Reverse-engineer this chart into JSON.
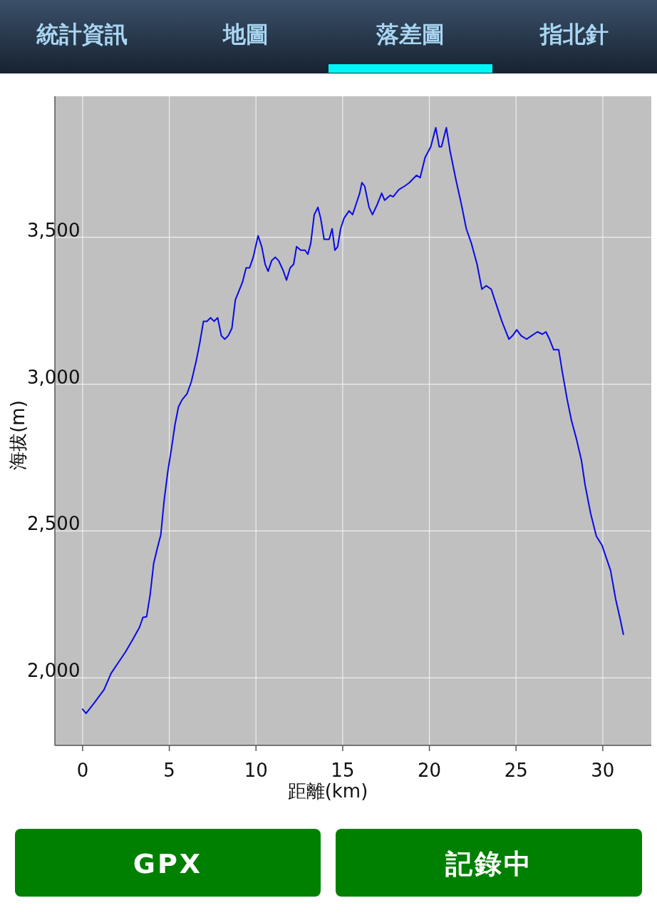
{
  "chart_data": {
    "type": "line",
    "xlabel": "距離(km)",
    "ylabel": "海拔(m)",
    "annotations": [
      "統計資訊",
      "地圖",
      "落差圖",
      "指北針",
      "GPX",
      "記錄中"
    ],
    "xlim": [
      -1.6,
      32.8
    ],
    "ylim": [
      1770,
      3980
    ],
    "xticks": [
      0,
      5,
      10,
      15,
      20,
      25,
      30
    ],
    "yticks": [
      {
        "value": 2000,
        "label": "2,000"
      },
      {
        "value": 2500,
        "label": "2,500"
      },
      {
        "value": 3000,
        "label": "3,000"
      },
      {
        "value": 3500,
        "label": "3,500"
      }
    ],
    "grid": true,
    "x": [
      0,
      0.2,
      0.61,
      1.23,
      1.64,
      2.05,
      2.46,
      2.87,
      3.28,
      3.48,
      3.69,
      3.89,
      4.1,
      4.3,
      4.51,
      4.71,
      4.92,
      5.12,
      5.33,
      5.53,
      5.74,
      6.02,
      6.27,
      6.56,
      6.76,
      6.97,
      7.17,
      7.38,
      7.58,
      7.79,
      8.0,
      8.2,
      8.4,
      8.61,
      8.81,
      9.22,
      9.43,
      9.63,
      9.84,
      10.12,
      10.33,
      10.53,
      10.7,
      10.9,
      11.11,
      11.31,
      11.56,
      11.76,
      11.97,
      12.17,
      12.34,
      12.58,
      12.83,
      12.99,
      13.16,
      13.36,
      13.57,
      13.73,
      13.93,
      14.22,
      14.39,
      14.55,
      14.71,
      14.88,
      15.08,
      15.37,
      15.57,
      15.78,
      15.98,
      16.11,
      16.27,
      16.52,
      16.72,
      17.01,
      17.25,
      17.42,
      17.75,
      17.91,
      18.24,
      18.57,
      18.85,
      19.26,
      19.47,
      19.75,
      20.08,
      20.37,
      20.57,
      20.7,
      20.98,
      21.19,
      21.52,
      21.84,
      22.13,
      22.42,
      22.75,
      23.03,
      23.28,
      23.57,
      23.77,
      24.18,
      24.59,
      24.8,
      25.04,
      25.29,
      25.61,
      25.9,
      26.23,
      26.52,
      26.72,
      26.93,
      27.17,
      27.46,
      27.66,
      27.95,
      28.2,
      28.48,
      28.77,
      28.98,
      29.3,
      29.63,
      29.96,
      30.2,
      30.45,
      30.74,
      31.02,
      31.19
    ],
    "series": [
      {
        "color": "#0a0ae6",
        "values": [
          1893,
          1879,
          1910,
          1959,
          2015,
          2051,
          2087,
          2128,
          2172,
          2206,
          2208,
          2281,
          2390,
          2439,
          2487,
          2608,
          2705,
          2778,
          2863,
          2923,
          2947,
          2967,
          3008,
          3081,
          3141,
          3214,
          3214,
          3226,
          3214,
          3226,
          3165,
          3153,
          3165,
          3190,
          3287,
          3347,
          3396,
          3396,
          3432,
          3505,
          3468,
          3408,
          3384,
          3420,
          3432,
          3420,
          3388,
          3354,
          3396,
          3408,
          3468,
          3456,
          3456,
          3442,
          3480,
          3577,
          3602,
          3565,
          3493,
          3493,
          3529,
          3456,
          3468,
          3529,
          3565,
          3590,
          3577,
          3614,
          3650,
          3686,
          3674,
          3602,
          3577,
          3614,
          3650,
          3626,
          3643,
          3638,
          3662,
          3674,
          3686,
          3711,
          3703,
          3771,
          3808,
          3873,
          3808,
          3808,
          3873,
          3795,
          3699,
          3614,
          3529,
          3480,
          3408,
          3323,
          3335,
          3323,
          3287,
          3214,
          3153,
          3165,
          3185,
          3165,
          3153,
          3165,
          3178,
          3170,
          3178,
          3153,
          3117,
          3117,
          3044,
          2947,
          2875,
          2814,
          2741,
          2657,
          2560,
          2482,
          2451,
          2409,
          2366,
          2269,
          2196,
          2148
        ]
      }
    ]
  }
}
